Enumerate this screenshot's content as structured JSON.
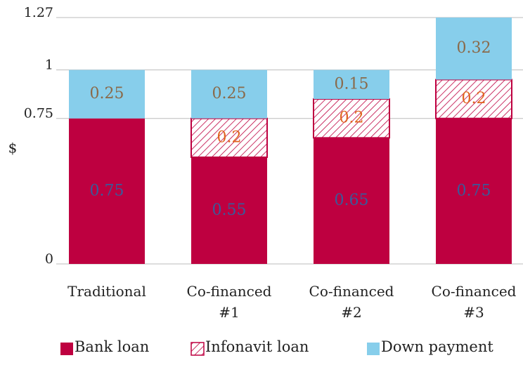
{
  "chart_data": {
    "type": "bar",
    "stacked": true,
    "y_label": "$",
    "categories": [
      "Traditional",
      "Co-financed #1",
      "Co-financed #2",
      "Co-financed #3"
    ],
    "series": [
      {
        "name": "Bank loan",
        "color": "#be0040",
        "label_color": "#3a5a9a",
        "values": [
          0.75,
          0.55,
          0.65,
          0.75
        ]
      },
      {
        "name": "Infonavit loan",
        "color": "#be0040",
        "hatched": true,
        "label_color": "#e0651e",
        "values": [
          null,
          0.2,
          0.2,
          0.2
        ]
      },
      {
        "name": "Down payment",
        "color": "#87ceeb",
        "label_color": "#8a6a4a",
        "values": [
          0.25,
          0.25,
          0.15,
          0.32
        ]
      }
    ],
    "ylim": [
      0,
      1.27
    ],
    "yticks": [
      0,
      0.75,
      1,
      1.27
    ],
    "grid": true,
    "legend": "bottom"
  }
}
